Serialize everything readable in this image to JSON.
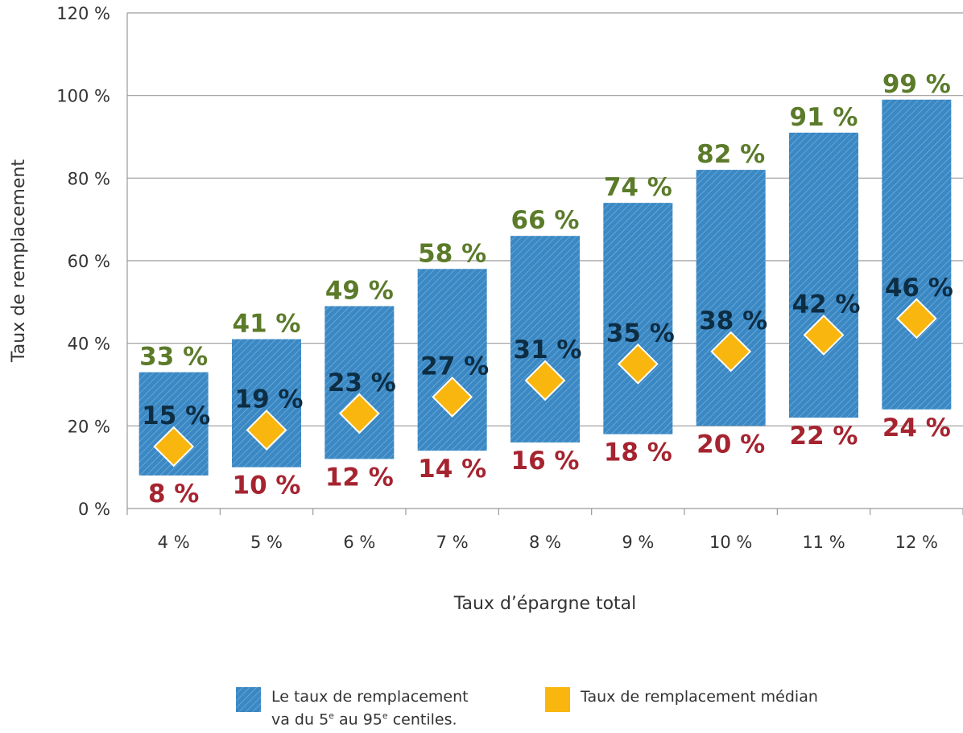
{
  "chart_data": {
    "type": "bar",
    "ylabel": "Taux de remplacement",
    "xlabel": "Taux d’épargne total",
    "ylim": [
      0,
      120
    ],
    "y_ticks": [
      "0 %",
      "20 %",
      "40 %",
      "60 %",
      "80 %",
      "100 %",
      "120 %"
    ],
    "grid": true,
    "categories": [
      "4 %",
      "5 %",
      "6 %",
      "7 %",
      "8 %",
      "9 %",
      "10 %",
      "11 %",
      "12 %"
    ],
    "series": [
      {
        "name": "Le taux de remplacement va du 5e au 95e centiles.",
        "type": "floating-bar",
        "low": [
          8,
          10,
          12,
          14,
          16,
          18,
          20,
          22,
          24
        ],
        "high": [
          33,
          41,
          49,
          58,
          66,
          74,
          82,
          91,
          99
        ],
        "low_labels": [
          "8 %",
          "10 %",
          "12 %",
          "14 %",
          "16 %",
          "18 %",
          "20 %",
          "22 %",
          "24 %"
        ],
        "high_labels": [
          "33 %",
          "41 %",
          "49 %",
          "58 %",
          "66 %",
          "74 %",
          "82 %",
          "91 %",
          "99 %"
        ]
      },
      {
        "name": "Taux de remplacement médian",
        "type": "marker",
        "values": [
          15,
          19,
          23,
          27,
          31,
          35,
          38,
          42,
          46
        ],
        "labels": [
          "15 %",
          "19 %",
          "23 %",
          "27 %",
          "31 %",
          "35 %",
          "38 %",
          "42 %",
          "46 %"
        ]
      }
    ],
    "legend_position": "bottom",
    "colors": {
      "band": "#3a88c4",
      "median": "#f9b60f",
      "high_label": "#5b7b2a",
      "low_label": "#a52430",
      "median_label": "#0d2d43"
    }
  },
  "legend": {
    "band_line1": "Le taux de remplacement",
    "band_line2_a": "va du 5",
    "band_line2_sup1": "e",
    "band_line2_b": " au 95",
    "band_line2_sup2": "e",
    "band_line2_c": " centiles.",
    "median": "Taux de remplacement médian"
  }
}
